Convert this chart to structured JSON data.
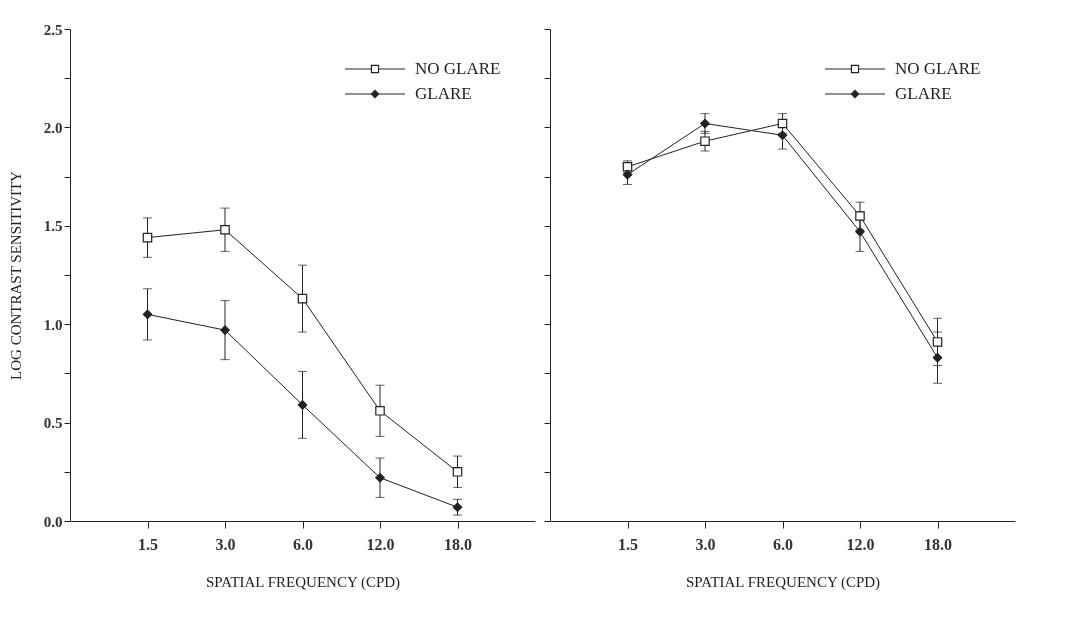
{
  "chart_data": [
    {
      "type": "line",
      "xlabel": "SPATIAL FREQUENCY (CPD)",
      "ylabel": "LOG CONTRAST SENSITIVITY",
      "categories": [
        "1.5",
        "3.0",
        "6.0",
        "12.0",
        "18.0"
      ],
      "ylim": [
        0,
        2.5
      ],
      "yticks": [
        {
          "value": 0,
          "label": "0.0"
        },
        {
          "value": 0.25,
          "label": null
        },
        {
          "value": 0.5,
          "label": "0.5"
        },
        {
          "value": 0.75,
          "label": null
        },
        {
          "value": 1,
          "label": "1.0"
        },
        {
          "value": 1.25,
          "label": null
        },
        {
          "value": 1.5,
          "label": "1.5"
        },
        {
          "value": 1.75,
          "label": null
        },
        {
          "value": 2,
          "label": "2.0"
        },
        {
          "value": 2.25,
          "label": null
        },
        {
          "value": 2.5,
          "label": "2.5"
        }
      ],
      "legend": "top right",
      "grid": false,
      "series": [
        {
          "name": "NO GLARE",
          "color": "#222222",
          "marker": "square",
          "values": [
            1.44,
            1.48,
            1.13,
            0.56,
            0.25
          ],
          "errors": [
            0.1,
            0.11,
            0.17,
            0.13,
            0.08
          ]
        },
        {
          "name": "GLARE",
          "color": "#222222",
          "marker": "diamond",
          "values": [
            1.05,
            0.97,
            0.59,
            0.22,
            0.07
          ],
          "errors": [
            0.13,
            0.15,
            0.17,
            0.1,
            0.04
          ]
        }
      ]
    },
    {
      "type": "line",
      "xlabel": "SPATIAL FREQUENCY (CPD)",
      "categories": [
        "1.5",
        "3.0",
        "6.0",
        "12.0",
        "18.0"
      ],
      "ylim": [
        0,
        2.5
      ],
      "yticks": [
        {
          "value": 0,
          "label": null
        },
        {
          "value": 0.25,
          "label": null
        },
        {
          "value": 0.5,
          "label": null
        },
        {
          "value": 0.75,
          "label": null
        },
        {
          "value": 1,
          "label": null
        },
        {
          "value": 1.25,
          "label": null
        },
        {
          "value": 1.5,
          "label": null
        },
        {
          "value": 1.75,
          "label": null
        },
        {
          "value": 2,
          "label": null
        },
        {
          "value": 2.25,
          "label": null
        },
        {
          "value": 2.5,
          "label": null
        }
      ],
      "legend": "top right",
      "grid": false,
      "tick_labels": "x",
      "series": [
        {
          "name": "NO GLARE",
          "color": "#222222",
          "marker": "square",
          "values": [
            1.8,
            1.93,
            2.02,
            1.55,
            0.91
          ],
          "errors": [
            0.03,
            0.05,
            0.05,
            0.07,
            0.12
          ]
        },
        {
          "name": "GLARE",
          "color": "#222222",
          "marker": "diamond",
          "values": [
            1.76,
            2.02,
            1.96,
            1.47,
            0.83
          ],
          "errors": [
            0.05,
            0.05,
            0.07,
            0.1,
            0.13
          ]
        }
      ]
    }
  ]
}
